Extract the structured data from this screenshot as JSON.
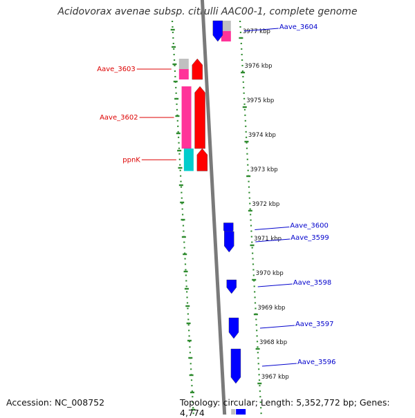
{
  "title": "Acidovorax avenae subsp. citrulli AAC00-1, complete genome",
  "footer": {
    "accession": "Accession: NC_008752",
    "summary": "Topology: circular; Length: 5,352,772 bp; Genes: 4,774"
  },
  "colors": {
    "backbone": "#7a7a7a",
    "dotted_track": "#2e8b2e",
    "forward_gene": "#ff0000",
    "reverse_gene": "#0000ff",
    "label_forward": "#dd0000",
    "label_reverse": "#0000cc",
    "cog_gray": "#c0c0c0",
    "cog_magenta": "#ff3399",
    "cog_cyan": "#00cccc"
  },
  "scale": [
    {
      "kbp": 3977,
      "label": "3977 kbp"
    },
    {
      "kbp": 3976,
      "label": "3976 kbp"
    },
    {
      "kbp": 3975,
      "label": "3975 kbp"
    },
    {
      "kbp": 3974,
      "label": "3974 kbp"
    },
    {
      "kbp": 3973,
      "label": "3973 kbp"
    },
    {
      "kbp": 3972,
      "label": "3972 kbp"
    },
    {
      "kbp": 3971,
      "label": "3971 kbp"
    },
    {
      "kbp": 3970,
      "label": "3970 kbp"
    },
    {
      "kbp": 3969,
      "label": "3969 kbp"
    },
    {
      "kbp": 3968,
      "label": "3968 kbp"
    },
    {
      "kbp": 3967,
      "label": "3967 kbp"
    }
  ],
  "genes": [
    {
      "name": "Aave_3604",
      "strand": "reverse",
      "start_kbp": 3976.7,
      "end_kbp": 3977.3,
      "cog": [
        "gray",
        "magenta"
      ]
    },
    {
      "name": "Aave_3603",
      "strand": "forward",
      "start_kbp": 3975.6,
      "end_kbp": 3976.2,
      "cog": [
        "gray",
        "magenta"
      ]
    },
    {
      "name": "Aave_3602",
      "strand": "forward",
      "start_kbp": 3973.6,
      "end_kbp": 3975.4,
      "cog": [
        "magenta"
      ]
    },
    {
      "name": "ppnK",
      "strand": "forward",
      "start_kbp": 3972.95,
      "end_kbp": 3973.6,
      "cog": [
        "cyan"
      ]
    },
    {
      "name": "Aave_3600",
      "strand": "reverse",
      "start_kbp": 3971.05,
      "end_kbp": 3971.45,
      "cog": []
    },
    {
      "name": "Aave_3599",
      "strand": "reverse",
      "start_kbp": 3970.6,
      "end_kbp": 3971.2,
      "cog": []
    },
    {
      "name": "Aave_3598",
      "strand": "reverse",
      "start_kbp": 3969.4,
      "end_kbp": 3969.8,
      "cog": []
    },
    {
      "name": "Aave_3597",
      "strand": "reverse",
      "start_kbp": 3968.1,
      "end_kbp": 3968.7,
      "cog": []
    },
    {
      "name": "Aave_3596",
      "strand": "reverse",
      "start_kbp": 3966.8,
      "end_kbp": 3967.8,
      "cog": []
    }
  ]
}
